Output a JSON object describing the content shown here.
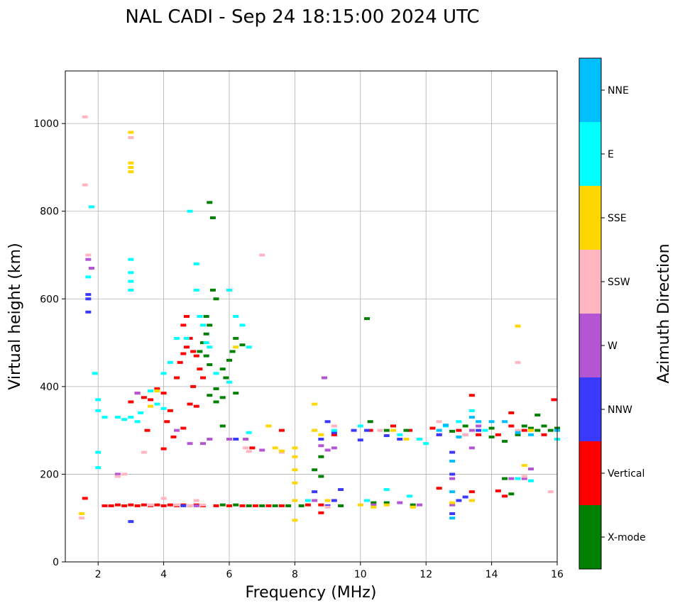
{
  "chart_data": {
    "type": "scatter",
    "title": "NAL CADI - Sep 24 18:15:00 2024 UTC",
    "xlabel": "Frequency (MHz)",
    "ylabel": "Virtual height (km)",
    "xlim": [
      1,
      16
    ],
    "ylim": [
      0,
      1120
    ],
    "xticks": [
      2,
      4,
      6,
      8,
      10,
      12,
      14,
      16
    ],
    "yticks": [
      0,
      200,
      400,
      600,
      800,
      1000
    ],
    "grid": true,
    "colorbar": {
      "label": "Azimuth Direction",
      "categories": [
        {
          "name": "X-mode",
          "color": "#008000"
        },
        {
          "name": "Vertical",
          "color": "#ff0000"
        },
        {
          "name": "NNW",
          "color": "#3a3aff"
        },
        {
          "name": "W",
          "color": "#b455d4"
        },
        {
          "name": "SSW",
          "color": "#ffb6c1"
        },
        {
          "name": "SSE",
          "color": "#ffd700"
        },
        {
          "name": "E",
          "color": "#00ffff"
        },
        {
          "name": "NNE",
          "color": "#00bfff"
        }
      ]
    },
    "series": [
      {
        "name": "Vertical",
        "points": [
          [
            1.6,
            145
          ],
          [
            2.2,
            128
          ],
          [
            2.4,
            128
          ],
          [
            2.6,
            130
          ],
          [
            2.8,
            128
          ],
          [
            3.0,
            130
          ],
          [
            3.2,
            128
          ],
          [
            3.4,
            130
          ],
          [
            3.6,
            128
          ],
          [
            3.8,
            130
          ],
          [
            4.0,
            128
          ],
          [
            4.2,
            130
          ],
          [
            4.4,
            128
          ],
          [
            4.6,
            130
          ],
          [
            4.8,
            128
          ],
          [
            5.0,
            130
          ],
          [
            5.2,
            128
          ],
          [
            5.6,
            128
          ],
          [
            6.0,
            128
          ],
          [
            6.4,
            128
          ],
          [
            6.8,
            128
          ],
          [
            7.2,
            128
          ],
          [
            7.6,
            128
          ],
          [
            8.4,
            130
          ],
          [
            8.8,
            130
          ],
          [
            3.0,
            365
          ],
          [
            3.2,
            385
          ],
          [
            3.4,
            375
          ],
          [
            3.6,
            370
          ],
          [
            3.8,
            395
          ],
          [
            4.0,
            385
          ],
          [
            3.5,
            300
          ],
          [
            4.1,
            320
          ],
          [
            4.2,
            345
          ],
          [
            4.4,
            420
          ],
          [
            4.5,
            455
          ],
          [
            4.6,
            475
          ],
          [
            4.7,
            490
          ],
          [
            4.8,
            510
          ],
          [
            4.6,
            540
          ],
          [
            4.7,
            560
          ],
          [
            4.9,
            480
          ],
          [
            5.0,
            470
          ],
          [
            5.1,
            440
          ],
          [
            5.2,
            420
          ],
          [
            4.8,
            360
          ],
          [
            5.0,
            355
          ],
          [
            4.9,
            400
          ],
          [
            4.6,
            305
          ],
          [
            4.3,
            285
          ],
          [
            4.0,
            258
          ],
          [
            6.7,
            260
          ],
          [
            9.2,
            290
          ],
          [
            10.3,
            300
          ],
          [
            11.0,
            310
          ],
          [
            11.5,
            300
          ],
          [
            12.2,
            305
          ],
          [
            12.4,
            290
          ],
          [
            12.4,
            168
          ],
          [
            13.0,
            300
          ],
          [
            13.4,
            380
          ],
          [
            13.4,
            160
          ],
          [
            13.4,
            140
          ],
          [
            13.6,
            290
          ],
          [
            14.2,
            290
          ],
          [
            14.6,
            340
          ],
          [
            14.6,
            310
          ],
          [
            15.0,
            300
          ],
          [
            15.6,
            290
          ],
          [
            15.9,
            370
          ],
          [
            14.2,
            162
          ],
          [
            14.4,
            150
          ],
          [
            8.8,
            112
          ],
          [
            7.6,
            300
          ]
        ]
      },
      {
        "name": "X-mode",
        "points": [
          [
            5.3,
            560
          ],
          [
            5.4,
            540
          ],
          [
            5.3,
            520
          ],
          [
            5.2,
            500
          ],
          [
            5.1,
            480
          ],
          [
            5.3,
            470
          ],
          [
            5.4,
            450
          ],
          [
            5.5,
            620
          ],
          [
            5.4,
            820
          ],
          [
            5.5,
            785
          ],
          [
            5.6,
            600
          ],
          [
            5.8,
            440
          ],
          [
            5.9,
            420
          ],
          [
            6.0,
            460
          ],
          [
            6.1,
            480
          ],
          [
            6.2,
            510
          ],
          [
            6.4,
            495
          ],
          [
            5.8,
            375
          ],
          [
            5.6,
            365
          ],
          [
            5.4,
            380
          ],
          [
            5.6,
            395
          ],
          [
            5.8,
            310
          ],
          [
            6.2,
            385
          ],
          [
            5.8,
            130
          ],
          [
            6.2,
            130
          ],
          [
            6.6,
            128
          ],
          [
            7.0,
            128
          ],
          [
            7.4,
            128
          ],
          [
            7.8,
            128
          ],
          [
            8.2,
            128
          ],
          [
            8.6,
            210
          ],
          [
            8.8,
            195
          ],
          [
            8.8,
            240
          ],
          [
            9.4,
            128
          ],
          [
            10.2,
            555
          ],
          [
            10.3,
            320
          ],
          [
            10.8,
            300
          ],
          [
            11.4,
            300
          ],
          [
            10.4,
            135
          ],
          [
            10.8,
            135
          ],
          [
            11.6,
            130
          ],
          [
            12.8,
            298
          ],
          [
            13.2,
            310
          ],
          [
            14.0,
            305
          ],
          [
            14.0,
            285
          ],
          [
            14.4,
            275
          ],
          [
            14.8,
            290
          ],
          [
            15.0,
            310
          ],
          [
            15.2,
            305
          ],
          [
            15.4,
            300
          ],
          [
            15.6,
            310
          ],
          [
            15.8,
            300
          ],
          [
            16.0,
            305
          ],
          [
            15.4,
            335
          ],
          [
            14.4,
            190
          ],
          [
            14.6,
            155
          ]
        ]
      },
      {
        "name": "NNW",
        "points": [
          [
            1.7,
            600
          ],
          [
            1.7,
            570
          ],
          [
            1.7,
            610
          ],
          [
            3.0,
            92
          ],
          [
            4.6,
            128
          ],
          [
            6.2,
            280
          ],
          [
            8.8,
            280
          ],
          [
            9.0,
            320
          ],
          [
            9.2,
            295
          ],
          [
            9.2,
            140
          ],
          [
            9.8,
            300
          ],
          [
            10.0,
            278
          ],
          [
            10.2,
            300
          ],
          [
            10.8,
            288
          ],
          [
            11.2,
            280
          ],
          [
            12.4,
            290
          ],
          [
            12.8,
            250
          ],
          [
            12.8,
            200
          ],
          [
            12.8,
            110
          ],
          [
            13.0,
            140
          ],
          [
            13.2,
            148
          ],
          [
            13.6,
            300
          ],
          [
            13.2,
            290
          ],
          [
            8.6,
            160
          ],
          [
            9.4,
            165
          ],
          [
            9.0,
            128
          ]
        ]
      },
      {
        "name": "W",
        "points": [
          [
            1.7,
            690
          ],
          [
            1.8,
            670
          ],
          [
            3.2,
            385
          ],
          [
            4.4,
            300
          ],
          [
            4.8,
            270
          ],
          [
            5.2,
            270
          ],
          [
            5.4,
            280
          ],
          [
            6.0,
            280
          ],
          [
            6.5,
            280
          ],
          [
            7.0,
            255
          ],
          [
            8.8,
            265
          ],
          [
            9.0,
            255
          ],
          [
            9.2,
            260
          ],
          [
            10.4,
            130
          ],
          [
            11.2,
            135
          ],
          [
            11.8,
            130
          ],
          [
            12.8,
            190
          ],
          [
            12.8,
            130
          ],
          [
            13.4,
            260
          ],
          [
            13.4,
            300
          ],
          [
            13.6,
            310
          ],
          [
            14.6,
            190
          ],
          [
            15.0,
            190
          ],
          [
            15.2,
            212
          ],
          [
            5.0,
            128
          ],
          [
            8.9,
            420
          ],
          [
            8.6,
            140
          ],
          [
            2.6,
            200
          ]
        ]
      },
      {
        "name": "SSW",
        "points": [
          [
            1.6,
            1015
          ],
          [
            1.6,
            860
          ],
          [
            1.7,
            700
          ],
          [
            2.6,
            195
          ],
          [
            2.8,
            200
          ],
          [
            3.4,
            250
          ],
          [
            3.6,
            130
          ],
          [
            4.0,
            145
          ],
          [
            4.4,
            130
          ],
          [
            4.8,
            128
          ],
          [
            5.0,
            140
          ],
          [
            5.2,
            130
          ],
          [
            6.5,
            260
          ],
          [
            6.6,
            252
          ],
          [
            7.0,
            700
          ],
          [
            7.6,
            250
          ],
          [
            8.6,
            300
          ],
          [
            9.2,
            310
          ],
          [
            10.6,
            300
          ],
          [
            12.4,
            320
          ],
          [
            13.2,
            290
          ],
          [
            14.8,
            300
          ],
          [
            15.2,
            300
          ],
          [
            15.8,
            160
          ],
          [
            14.8,
            455
          ],
          [
            15.0,
            195
          ],
          [
            3.0,
            968
          ],
          [
            1.5,
            100
          ],
          [
            9.0,
            125
          ]
        ]
      },
      {
        "name": "SSE",
        "points": [
          [
            1.5,
            110
          ],
          [
            3.0,
            980
          ],
          [
            3.0,
            910
          ],
          [
            3.0,
            900
          ],
          [
            3.0,
            890
          ],
          [
            3.6,
            355
          ],
          [
            3.8,
            390
          ],
          [
            6.2,
            490
          ],
          [
            7.2,
            310
          ],
          [
            7.4,
            260
          ],
          [
            7.6,
            253
          ],
          [
            8.0,
            260
          ],
          [
            8.0,
            240
          ],
          [
            8.0,
            210
          ],
          [
            8.0,
            180
          ],
          [
            8.0,
            140
          ],
          [
            8.0,
            95
          ],
          [
            8.6,
            360
          ],
          [
            8.6,
            300
          ],
          [
            8.8,
            290
          ],
          [
            9.0,
            140
          ],
          [
            10.0,
            130
          ],
          [
            10.4,
            125
          ],
          [
            10.8,
            130
          ],
          [
            11.0,
            300
          ],
          [
            11.4,
            280
          ],
          [
            11.6,
            125
          ],
          [
            12.8,
            135
          ],
          [
            13.4,
            140
          ],
          [
            15.0,
            220
          ],
          [
            14.8,
            538
          ],
          [
            15.2,
            300
          ]
        ]
      },
      {
        "name": "E",
        "points": [
          [
            1.8,
            810
          ],
          [
            1.7,
            650
          ],
          [
            1.9,
            430
          ],
          [
            2.0,
            370
          ],
          [
            2.0,
            345
          ],
          [
            2.2,
            330
          ],
          [
            2.6,
            330
          ],
          [
            2.8,
            325
          ],
          [
            3.0,
            330
          ],
          [
            3.0,
            690
          ],
          [
            3.0,
            660
          ],
          [
            3.0,
            640
          ],
          [
            3.0,
            620
          ],
          [
            3.2,
            320
          ],
          [
            3.3,
            340
          ],
          [
            3.6,
            390
          ],
          [
            3.8,
            360
          ],
          [
            4.0,
            350
          ],
          [
            4.0,
            430
          ],
          [
            4.2,
            455
          ],
          [
            4.4,
            510
          ],
          [
            4.7,
            510
          ],
          [
            4.8,
            800
          ],
          [
            5.0,
            680
          ],
          [
            5.0,
            620
          ],
          [
            5.1,
            560
          ],
          [
            5.2,
            540
          ],
          [
            5.3,
            500
          ],
          [
            5.4,
            490
          ],
          [
            5.6,
            430
          ],
          [
            6.0,
            620
          ],
          [
            6.2,
            560
          ],
          [
            6.4,
            540
          ],
          [
            6.6,
            490
          ],
          [
            6.0,
            410
          ],
          [
            6.6,
            295
          ],
          [
            9.2,
            300
          ],
          [
            10.0,
            310
          ],
          [
            11.2,
            290
          ],
          [
            11.8,
            280
          ],
          [
            12.0,
            270
          ],
          [
            12.6,
            310
          ],
          [
            13.0,
            320
          ],
          [
            13.4,
            345
          ],
          [
            13.8,
            300
          ],
          [
            14.8,
            190
          ],
          [
            15.2,
            185
          ],
          [
            16.0,
            280
          ],
          [
            10.2,
            140
          ],
          [
            10.8,
            165
          ],
          [
            11.5,
            150
          ],
          [
            8.4,
            140
          ],
          [
            2.0,
            250
          ],
          [
            2.0,
            215
          ]
        ]
      },
      {
        "name": "NNE",
        "points": [
          [
            12.4,
            300
          ],
          [
            12.6,
            312
          ],
          [
            12.8,
            230
          ],
          [
            12.8,
            160
          ],
          [
            12.8,
            100
          ],
          [
            13.0,
            285
          ],
          [
            13.4,
            330
          ],
          [
            13.6,
            320
          ],
          [
            14.0,
            320
          ],
          [
            14.4,
            320
          ],
          [
            14.8,
            295
          ],
          [
            15.2,
            290
          ],
          [
            16.0,
            300
          ]
        ]
      }
    ]
  }
}
